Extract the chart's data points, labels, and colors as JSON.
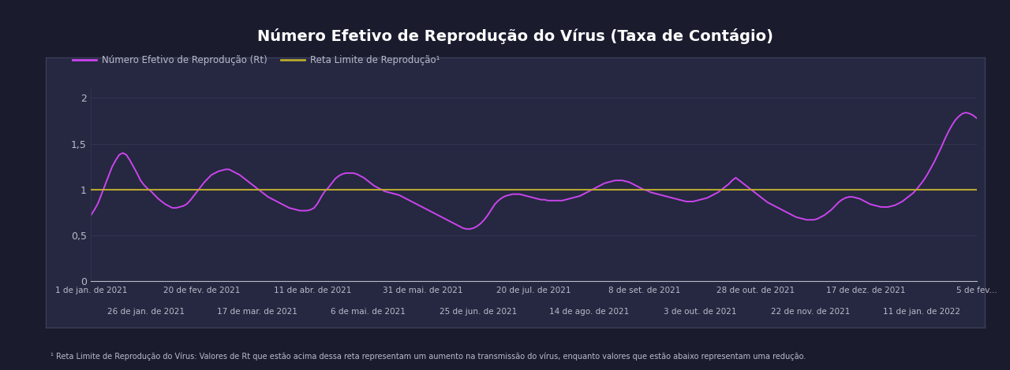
{
  "title": "Número Efetivo de Reprodução do Vírus (Taxa de Contágio)",
  "title_bg": "#1278c0",
  "title_color": "#ffffff",
  "outer_bg": "#1a1c2e",
  "panel_bg": "#252840",
  "panel_border": "#3a3e58",
  "line_color": "#cc44ee",
  "limit_line_color": "#b8a830",
  "text_color": "#bbbbcc",
  "grid_color": "#353855",
  "ylim": [
    0,
    2.1
  ],
  "yticks": [
    0,
    0.5,
    1.0,
    1.5,
    2.0
  ],
  "ytick_labels": [
    "0",
    "0,5",
    "1",
    "1,5",
    "2"
  ],
  "legend_rt": "Número Efetivo de Reprodução (Rt)",
  "legend_limit": "Reta Limite de Reprodução¹",
  "footnote": "¹ Reta Limite de Reprodução do Vírus: Valores de Rt que estão acima dessa reta representam um aumento na transmissão do vírus, enquanto valores que estão abaixo representam uma redução.",
  "xtick_labels_top": [
    "1 de jan. de 2021",
    "20 de fev. de 2021",
    "11 de abr. de 2021",
    "31 de mai. de 2021",
    "20 de jul. de 2021",
    "8 de set. de 2021",
    "28 de out. de 2021",
    "17 de dez. de 2021",
    "5 de fev..."
  ],
  "xtick_labels_bot": [
    "26 de jan. de 2021",
    "17 de mar. de 2021",
    "6 de mai. de 2021",
    "25 de jun. de 2021",
    "14 de ago. de 2021",
    "3 de out. de 2021",
    "22 de nov. de 2021",
    "11 de jan. de 2022"
  ],
  "rt_values": [
    0.72,
    0.78,
    0.85,
    0.95,
    1.05,
    1.15,
    1.25,
    1.32,
    1.38,
    1.4,
    1.38,
    1.32,
    1.25,
    1.18,
    1.1,
    1.05,
    1.01,
    0.98,
    0.94,
    0.9,
    0.87,
    0.84,
    0.82,
    0.8,
    0.8,
    0.81,
    0.82,
    0.84,
    0.88,
    0.93,
    0.98,
    1.03,
    1.08,
    1.12,
    1.16,
    1.18,
    1.2,
    1.21,
    1.22,
    1.22,
    1.2,
    1.18,
    1.16,
    1.13,
    1.1,
    1.07,
    1.04,
    1.01,
    0.98,
    0.95,
    0.92,
    0.9,
    0.88,
    0.86,
    0.84,
    0.82,
    0.8,
    0.79,
    0.78,
    0.77,
    0.77,
    0.77,
    0.78,
    0.8,
    0.85,
    0.92,
    0.98,
    1.02,
    1.07,
    1.12,
    1.15,
    1.17,
    1.18,
    1.18,
    1.18,
    1.17,
    1.15,
    1.13,
    1.1,
    1.07,
    1.04,
    1.02,
    1.0,
    0.98,
    0.97,
    0.96,
    0.95,
    0.94,
    0.92,
    0.9,
    0.88,
    0.86,
    0.84,
    0.82,
    0.8,
    0.78,
    0.76,
    0.74,
    0.72,
    0.7,
    0.68,
    0.66,
    0.64,
    0.62,
    0.6,
    0.58,
    0.57,
    0.57,
    0.58,
    0.6,
    0.63,
    0.67,
    0.72,
    0.78,
    0.84,
    0.88,
    0.91,
    0.93,
    0.94,
    0.95,
    0.95,
    0.95,
    0.94,
    0.93,
    0.92,
    0.91,
    0.9,
    0.89,
    0.89,
    0.88,
    0.88,
    0.88,
    0.88,
    0.88,
    0.89,
    0.9,
    0.91,
    0.92,
    0.93,
    0.95,
    0.97,
    0.99,
    1.01,
    1.03,
    1.05,
    1.07,
    1.08,
    1.09,
    1.1,
    1.1,
    1.1,
    1.09,
    1.08,
    1.06,
    1.04,
    1.02,
    1.0,
    0.99,
    0.97,
    0.96,
    0.95,
    0.94,
    0.93,
    0.92,
    0.91,
    0.9,
    0.89,
    0.88,
    0.87,
    0.87,
    0.87,
    0.88,
    0.89,
    0.9,
    0.91,
    0.93,
    0.95,
    0.97,
    1.0,
    1.03,
    1.06,
    1.1,
    1.13,
    1.1,
    1.07,
    1.04,
    1.01,
    0.98,
    0.95,
    0.92,
    0.89,
    0.86,
    0.84,
    0.82,
    0.8,
    0.78,
    0.76,
    0.74,
    0.72,
    0.7,
    0.69,
    0.68,
    0.67,
    0.67,
    0.67,
    0.68,
    0.7,
    0.72,
    0.75,
    0.78,
    0.82,
    0.86,
    0.89,
    0.91,
    0.92,
    0.92,
    0.91,
    0.9,
    0.88,
    0.86,
    0.84,
    0.83,
    0.82,
    0.81,
    0.81,
    0.81,
    0.82,
    0.83,
    0.85,
    0.87,
    0.9,
    0.93,
    0.96,
    1.0,
    1.05,
    1.1,
    1.16,
    1.23,
    1.3,
    1.38,
    1.46,
    1.55,
    1.63,
    1.7,
    1.76,
    1.8,
    1.83,
    1.84,
    1.83,
    1.81,
    1.78
  ]
}
